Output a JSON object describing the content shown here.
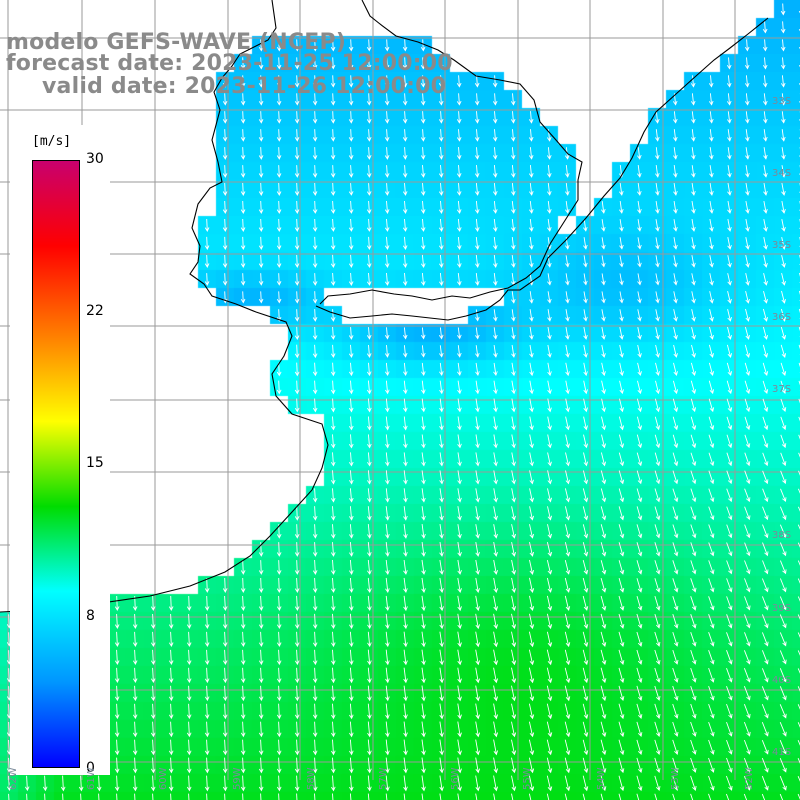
{
  "title": {
    "line1": "modelo GEFS-WAVE (NCEP)",
    "line2": "forecast date: 2023-11-25 12:00:00",
    "line3": "valid date: 2023-11-26 12:00:00"
  },
  "colorbar": {
    "unit": "[m/s]",
    "ticks": [
      {
        "value": 30,
        "label": "30"
      },
      {
        "value": 22,
        "label": "22"
      },
      {
        "value": 15,
        "label": "15"
      },
      {
        "value": 8,
        "label": "8"
      },
      {
        "value": 0,
        "label": "0"
      }
    ],
    "colors": [
      "#0000ff",
      "#0096ff",
      "#00ffff",
      "#00dc00",
      "#ffff00",
      "#ff8000",
      "#ff0000",
      "#c8006e"
    ]
  },
  "map": {
    "wind_direction": "southward",
    "land_color": "#ffffff",
    "grid_color": "#9a9a9a",
    "lat_labels": [
      "33S",
      "34S",
      "35S",
      "36S",
      "37S",
      "38S",
      "39S",
      "40S",
      "41S"
    ],
    "lon_labels": [
      "62W",
      "61W",
      "60W",
      "59W",
      "58W",
      "57W",
      "56W",
      "55W",
      "54W",
      "53W",
      "52W"
    ]
  }
}
